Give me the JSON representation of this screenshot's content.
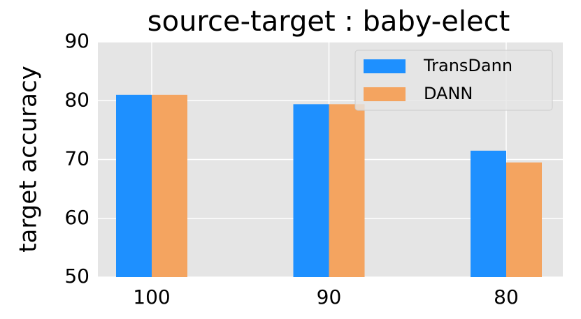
{
  "chart_data": {
    "type": "bar",
    "title": "source-target : baby-elect",
    "y_label": "target accuracy",
    "categories": [
      "100",
      "90",
      "80"
    ],
    "series": [
      {
        "name": "TransDann",
        "color": "#1e90ff",
        "values": [
          81.0,
          79.4,
          71.5
        ]
      },
      {
        "name": "DANN",
        "color": "#f4a460",
        "values": [
          81.0,
          79.4,
          69.5
        ]
      }
    ],
    "ylim": [
      50,
      90
    ],
    "yticks": [
      50,
      60,
      70,
      80,
      90
    ],
    "grid": true,
    "legend": "upper right"
  }
}
